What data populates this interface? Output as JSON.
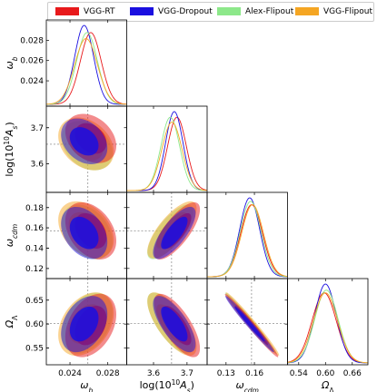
{
  "legend": [
    {
      "label": "VGG-RT",
      "color": "#e8191b"
    },
    {
      "label": "VGG-Dropout",
      "color": "#1a0fe0"
    },
    {
      "label": "Alex-Flipout",
      "color": "#8de88a"
    },
    {
      "label": "VGG-Flipout",
      "color": "#f5a623"
    }
  ],
  "chart_data": {
    "type": "corner",
    "parameters": [
      {
        "key": "wb",
        "label": "ω_b",
        "range": [
          0.0215,
          0.03
        ],
        "ticks": [
          "0.024",
          "0.026",
          "0.028"
        ],
        "ytick_values": [
          0.024,
          0.026,
          0.028
        ],
        "xtick_values": [
          0.024,
          0.028
        ],
        "xtick_labels": [
          "0.024",
          "0.028"
        ],
        "fiducial": 0.0259
      },
      {
        "key": "As",
        "label": "log(10¹⁰A_s)",
        "range": [
          3.52,
          3.76
        ],
        "ytick_values": [
          3.6,
          3.7
        ],
        "ytick_labels": [
          "3.6",
          "3.7"
        ],
        "xtick_values": [
          3.6,
          3.7
        ],
        "xtick_labels": [
          "3.6",
          "3.7"
        ],
        "fiducial": 3.654
      },
      {
        "key": "wc",
        "label": "ω_cdm",
        "range": [
          0.11,
          0.195
        ],
        "ytick_values": [
          0.12,
          0.14,
          0.16,
          0.18
        ],
        "ytick_labels": [
          "0.12",
          "0.14",
          "0.16",
          "0.18"
        ],
        "xtick_values": [
          0.13,
          0.16
        ],
        "xtick_labels": [
          "0.13",
          "0.16"
        ],
        "fiducial": 0.157
      },
      {
        "key": "OL",
        "label": "Ω_Λ",
        "range": [
          0.515,
          0.695
        ],
        "ytick_values": [
          0.55,
          0.6,
          0.65
        ],
        "ytick_labels": [
          "0.55",
          "0.60",
          "0.65"
        ],
        "xtick_values": [
          0.54,
          0.6,
          0.66
        ],
        "xtick_labels": [
          "0.54",
          "0.60",
          "0.66"
        ],
        "fiducial": 0.601
      }
    ],
    "series": [
      {
        "name": "VGG-RT",
        "color": "#e8191b",
        "mean": {
          "wb": 0.0262,
          "As": 3.67,
          "wc": 0.157,
          "OL": 0.597
        },
        "sigma": {
          "wb": 0.0011,
          "As": 0.028,
          "wc": 0.0115,
          "OL": 0.027
        }
      },
      {
        "name": "VGG-Dropout",
        "color": "#1a0fe0",
        "mean": {
          "wb": 0.0255,
          "As": 3.662,
          "wc": 0.155,
          "OL": 0.6
        },
        "sigma": {
          "wb": 0.001,
          "As": 0.026,
          "wc": 0.0105,
          "OL": 0.024
        }
      },
      {
        "name": "Alex-Flipout",
        "color": "#8de88a",
        "mean": {
          "wb": 0.0258,
          "As": 3.65,
          "wc": 0.156,
          "OL": 0.602
        },
        "sigma": {
          "wb": 0.0011,
          "As": 0.028,
          "wc": 0.011,
          "OL": 0.026
        }
      },
      {
        "name": "VGG-Flipout",
        "color": "#f5a623",
        "mean": {
          "wb": 0.0257,
          "As": 3.655,
          "wc": 0.158,
          "OL": 0.6
        },
        "sigma": {
          "wb": 0.0012,
          "As": 0.03,
          "wc": 0.0115,
          "OL": 0.027
        }
      }
    ]
  }
}
